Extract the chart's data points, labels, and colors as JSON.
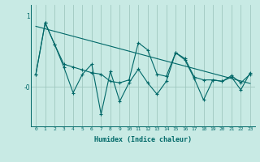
{
  "xlabel": "Humidex (Indice chaleur)",
  "background_color": "#c8eae4",
  "grid_color": "#a0c8c0",
  "line_color": "#006868",
  "xlim": [
    -0.5,
    23.5
  ],
  "ylim": [
    -0.55,
    1.15
  ],
  "ytick_vals": [
    0,
    1
  ],
  "ytick_labels": [
    "-0",
    "1"
  ],
  "xticks": [
    0,
    1,
    2,
    3,
    4,
    5,
    6,
    7,
    8,
    9,
    10,
    11,
    12,
    13,
    14,
    15,
    16,
    17,
    18,
    19,
    20,
    21,
    22,
    23
  ],
  "series_jagged_x": [
    0,
    1,
    2,
    3,
    4,
    5,
    6,
    7,
    8,
    9,
    10,
    11,
    12,
    13,
    14,
    15,
    16,
    17,
    18,
    19,
    20,
    21,
    22,
    23
  ],
  "series_jagged_y": [
    0.18,
    0.9,
    0.6,
    0.28,
    -0.08,
    0.18,
    0.32,
    -0.38,
    0.22,
    -0.2,
    0.06,
    0.25,
    0.06,
    -0.1,
    0.08,
    0.48,
    0.38,
    0.12,
    -0.18,
    0.1,
    0.08,
    0.14,
    -0.04,
    0.2
  ],
  "series_smooth_x": [
    0,
    1,
    2,
    3,
    4,
    5,
    6,
    7,
    8,
    9,
    10,
    11,
    12,
    13,
    14,
    15,
    16,
    17,
    18,
    19,
    20,
    21,
    22,
    23
  ],
  "series_smooth_y": [
    0.18,
    0.9,
    0.6,
    0.32,
    0.28,
    0.24,
    0.2,
    0.18,
    0.08,
    0.06,
    0.1,
    0.62,
    0.52,
    0.18,
    0.15,
    0.48,
    0.4,
    0.14,
    0.1,
    0.1,
    0.08,
    0.16,
    0.06,
    0.18
  ],
  "series_trend_x": [
    0,
    23
  ],
  "series_trend_y": [
    0.85,
    0.05
  ]
}
